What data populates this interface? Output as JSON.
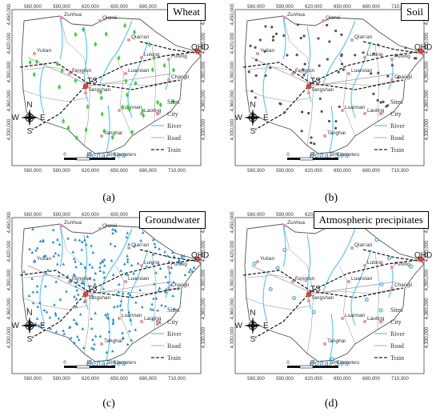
{
  "panels": [
    {
      "id": "a",
      "title": "Wheat",
      "caption": "(a)",
      "sites": {
        "color": "#3ad23a",
        "shape": "diamond",
        "count": 40
      }
    },
    {
      "id": "b",
      "title": "Soil",
      "caption": "(b)",
      "sites": {
        "color": "#555555",
        "shape": "dot",
        "count": 70
      }
    },
    {
      "id": "c",
      "title": "Groundwater",
      "caption": "(c)",
      "sites": {
        "color": "#1a8fd0",
        "shape": "triangle",
        "count": 230
      }
    },
    {
      "id": "d",
      "title": "Atmospheric precipitates",
      "caption": "(d)",
      "sites": {
        "color": "#39a9e6",
        "shape": "star",
        "count": 12
      }
    }
  ],
  "x_ticks": [
    "560,000",
    "590,000",
    "620,000",
    "650,000",
    "680,000",
    "710,000"
  ],
  "y_ticks": [
    "4,450,000",
    "4,420,000",
    "4,390,000",
    "4,360,000",
    "4,330,000"
  ],
  "cities": {
    "zunhua": "Zunhua",
    "qianxi": "Qianxi",
    "qianan": "Qian'an",
    "yutian": "Yutian",
    "fengrun": "Fengrun",
    "luanxian": "Luanxian",
    "lulong": "Lulong",
    "funing": "Funing",
    "changli": "Changli",
    "ts": "TS",
    "tangshan": "Tangshan",
    "luannan": "Luannan",
    "laoting": "Laoting",
    "tanghai": "Tanghai",
    "qhd": "QHD"
  },
  "sea": "Bohai Sea",
  "scale": {
    "zero": "0",
    "mid": "25",
    "end": "50 Kilometers"
  },
  "legend": [
    "Sites",
    "City",
    "River",
    "Road",
    "Train"
  ],
  "compass": {
    "n": "N",
    "s": "S",
    "e": "E",
    "w": "W"
  },
  "colors": {
    "river": "#4fc3f7",
    "road": "#999999",
    "train": "#222222",
    "city": "#e88f9a",
    "ts_city": "#d9423a"
  }
}
